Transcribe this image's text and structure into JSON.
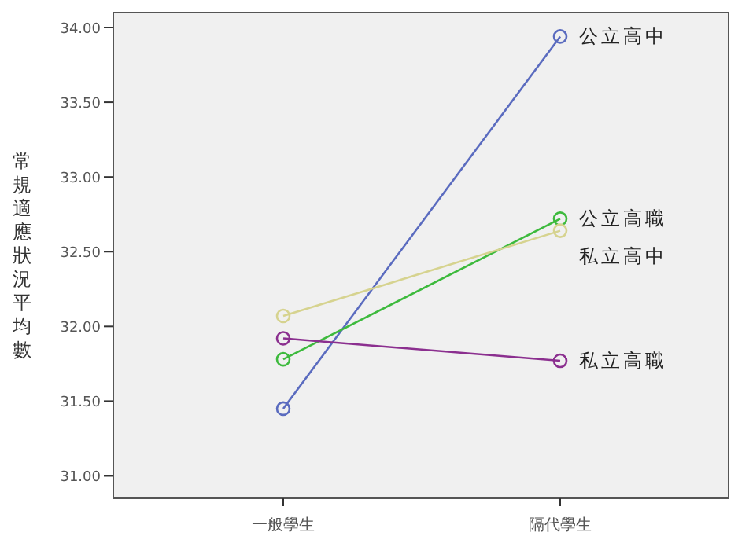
{
  "chart_data": {
    "type": "line",
    "ylabel": "常規適應狀況平均數",
    "categories": [
      "一般學生",
      "隔代學生"
    ],
    "ylim": [
      30.85,
      34.1
    ],
    "yticks": [
      {
        "value": 31,
        "label": "31.00"
      },
      {
        "value": 31.5,
        "label": "31.50"
      },
      {
        "value": 32,
        "label": "32.00"
      },
      {
        "value": 32.5,
        "label": "32.50"
      },
      {
        "value": 33,
        "label": "33.00"
      },
      {
        "value": 33.5,
        "label": "33.50"
      },
      {
        "value": 34,
        "label": "34.00"
      }
    ],
    "grid": false,
    "legend": false,
    "marker": "circle",
    "line_style": "solid",
    "series": [
      {
        "name": "公立高中",
        "color": "#5a6bbf",
        "values": [
          31.45,
          33.94
        ]
      },
      {
        "name": "公立高職",
        "color": "#3dba3d",
        "values": [
          31.78,
          32.72
        ]
      },
      {
        "name": "私立高中",
        "color": "#d6d38f",
        "values": [
          32.07,
          32.64
        ]
      },
      {
        "name": "私立高職",
        "color": "#8b2f8f",
        "values": [
          31.92,
          31.77
        ]
      }
    ]
  }
}
